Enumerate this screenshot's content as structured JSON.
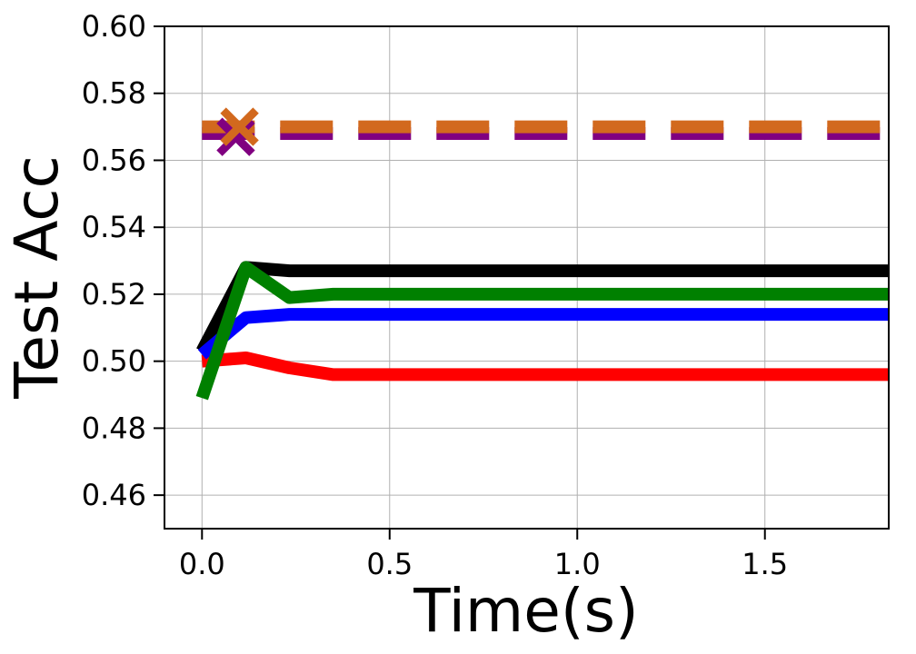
{
  "chart_data": {
    "type": "line",
    "title": "",
    "xlabel": "Time(s)",
    "ylabel": "Test Acc",
    "xlim": [
      -0.1,
      1.83
    ],
    "ylim": [
      0.45,
      0.6
    ],
    "grid": true,
    "xticks": [
      0.0,
      0.5,
      1.0,
      1.5
    ],
    "xtick_labels": [
      "0.0",
      "0.5",
      "1.0",
      "1.5"
    ],
    "yticks": [
      0.46,
      0.48,
      0.5,
      0.52,
      0.54,
      0.56,
      0.58,
      0.6
    ],
    "ytick_labels": [
      "0.46",
      "0.48",
      "0.50",
      "0.52",
      "0.54",
      "0.56",
      "0.58",
      "0.60"
    ],
    "series": [
      {
        "color": "#800080",
        "style": "dashed",
        "x": [
          0.0,
          0.1,
          1.83
        ],
        "y": [
          0.568,
          0.568,
          0.568
        ]
      },
      {
        "color": "#d2691e",
        "style": "dashed",
        "x": [
          0.0,
          0.1,
          1.83
        ],
        "y": [
          0.57,
          0.57,
          0.57
        ]
      },
      {
        "color": "#000000",
        "style": "solid",
        "x": [
          0.0,
          0.117,
          0.233,
          0.35,
          1.83
        ],
        "y": [
          0.503,
          0.528,
          0.527,
          0.527,
          0.527
        ]
      },
      {
        "color": "#ff0000",
        "style": "solid",
        "x": [
          0.0,
          0.117,
          0.233,
          0.35,
          1.83
        ],
        "y": [
          0.5,
          0.501,
          0.498,
          0.496,
          0.496
        ]
      },
      {
        "color": "#0000ff",
        "style": "solid",
        "x": [
          0.0,
          0.117,
          0.233,
          0.35,
          1.83
        ],
        "y": [
          0.502,
          0.513,
          0.514,
          0.514,
          0.514
        ]
      },
      {
        "color": "#008000",
        "style": "solid",
        "x": [
          0.0,
          0.117,
          0.233,
          0.35,
          1.83
        ],
        "y": [
          0.489,
          0.528,
          0.519,
          0.52,
          0.52
        ]
      }
    ],
    "markers": [
      {
        "color": "#800080",
        "shape": "x",
        "x": 0.09,
        "y": 0.567
      },
      {
        "color": "#d2691e",
        "shape": "x",
        "x": 0.1,
        "y": 0.57
      }
    ]
  }
}
